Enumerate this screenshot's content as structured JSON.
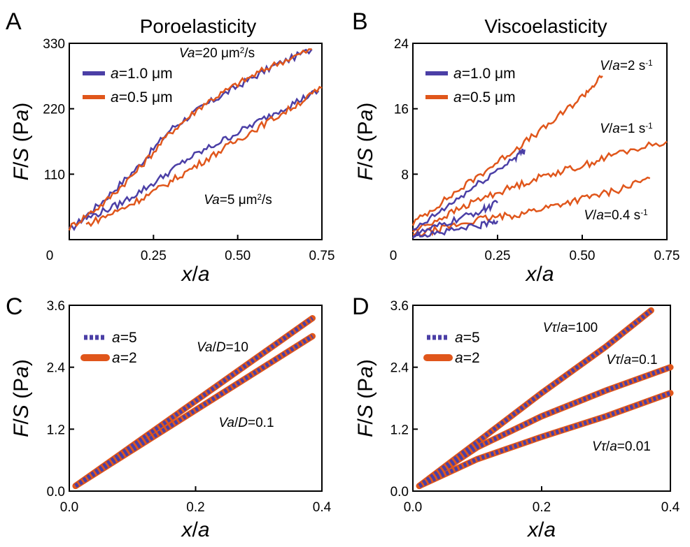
{
  "colors": {
    "blue": "#4b3fa6",
    "orange": "#e0561b",
    "axis": "#000000"
  },
  "chart_data": [
    {
      "panel": "A",
      "title": "Poroelasticity",
      "type": "line",
      "xlabel": "x/a",
      "ylabel": "F/S (Pa)",
      "xlim": [
        0,
        0.75
      ],
      "ylim": [
        0,
        330
      ],
      "xticks": [
        "0",
        "0.25",
        "0.50",
        "0.75"
      ],
      "yticks": [
        "110",
        "220",
        "330"
      ],
      "legend": [
        "a=1.0 μm",
        "a=0.5 μm"
      ],
      "annotations": [
        "Va=20 μm²/s",
        "Va=5 μm²/s"
      ],
      "series": [
        {
          "name": "a=1.0 μm",
          "group": "Va=20 μm²/s",
          "x": [
            0,
            0.1,
            0.2,
            0.3,
            0.4,
            0.5,
            0.6,
            0.72
          ],
          "y": [
            15,
            65,
            120,
            185,
            225,
            258,
            290,
            320
          ]
        },
        {
          "name": "a=0.5 μm",
          "group": "Va=20 μm²/s",
          "x": [
            0,
            0.1,
            0.2,
            0.3,
            0.4,
            0.5,
            0.6,
            0.72
          ],
          "y": [
            20,
            60,
            115,
            180,
            228,
            262,
            292,
            320
          ]
        },
        {
          "name": "a=1.0 μm",
          "group": "Va=5 μm²/s",
          "x": [
            0.05,
            0.15,
            0.25,
            0.35,
            0.45,
            0.55,
            0.65,
            0.74
          ],
          "y": [
            35,
            60,
            95,
            135,
            165,
            195,
            225,
            250
          ]
        },
        {
          "name": "a=0.5 μm",
          "group": "Va=5 μm²/s",
          "x": [
            0.05,
            0.15,
            0.25,
            0.35,
            0.45,
            0.55,
            0.65,
            0.75
          ],
          "y": [
            25,
            50,
            80,
            115,
            150,
            185,
            218,
            255
          ]
        }
      ]
    },
    {
      "panel": "B",
      "title": "Viscoelasticity",
      "type": "line",
      "xlabel": "x/a",
      "ylabel": "F/S (Pa)",
      "xlim": [
        0,
        0.75
      ],
      "ylim": [
        0,
        24
      ],
      "xticks": [
        "0",
        "0.25",
        "0.50",
        "0.75"
      ],
      "yticks": [
        "8",
        "16",
        "24"
      ],
      "legend": [
        "a=1.0 μm",
        "a=0.5 μm"
      ],
      "annotations": [
        "V/a=2 s⁻¹",
        "V/a=1 s⁻¹",
        "V/a=0.4 s⁻¹"
      ],
      "series": [
        {
          "name": "a=0.5 μm",
          "group": "V/a=2 s⁻¹",
          "x": [
            0,
            0.1,
            0.2,
            0.3,
            0.4,
            0.5,
            0.56
          ],
          "y": [
            2,
            5,
            8,
            11,
            14,
            17.5,
            20
          ]
        },
        {
          "name": "a=0.5 μm",
          "group": "V/a=1 s⁻¹",
          "x": [
            0,
            0.1,
            0.2,
            0.3,
            0.4,
            0.5,
            0.6,
            0.75
          ],
          "y": [
            1,
            3,
            5,
            6.5,
            8,
            9,
            10.5,
            12
          ]
        },
        {
          "name": "a=0.5 μm",
          "group": "V/a=0.4 s⁻¹",
          "x": [
            0,
            0.1,
            0.2,
            0.3,
            0.4,
            0.5,
            0.6,
            0.7
          ],
          "y": [
            0.5,
            1.5,
            2.5,
            3,
            4,
            5,
            6,
            7.5
          ]
        },
        {
          "name": "a=1.0 μm",
          "group": "V/a=2 s⁻¹",
          "x": [
            0,
            0.1,
            0.2,
            0.3,
            0.33
          ],
          "y": [
            1,
            4,
            7,
            10,
            11
          ]
        },
        {
          "name": "a=1.0 μm",
          "group": "V/a=1 s⁻¹",
          "x": [
            0,
            0.1,
            0.2,
            0.25
          ],
          "y": [
            0.5,
            2,
            3.5,
            4.5
          ]
        },
        {
          "name": "a=1.0 μm",
          "group": "V/a=0.4 s⁻¹",
          "x": [
            0,
            0.1,
            0.2,
            0.25
          ],
          "y": [
            0.5,
            1,
            1.8,
            2.3
          ]
        }
      ]
    },
    {
      "panel": "C",
      "type": "line",
      "xlabel": "x/a",
      "ylabel": "F/S (Pa)",
      "xlim": [
        0,
        0.4
      ],
      "ylim": [
        0,
        3.6
      ],
      "xticks": [
        "0.0",
        "0.2",
        "0.4"
      ],
      "yticks": [
        "0.0",
        "1.2",
        "2.4",
        "3.6"
      ],
      "legend": [
        "a=5",
        "a=2"
      ],
      "annotations": [
        "Va/D=10",
        "Va/D=0.1"
      ],
      "series": [
        {
          "name": "a=2",
          "group": "Va/D=10",
          "x": [
            0.01,
            0.385
          ],
          "y": [
            0.1,
            3.35
          ]
        },
        {
          "name": "a=2",
          "group": "Va/D=0.1",
          "x": [
            0.01,
            0.385
          ],
          "y": [
            0.1,
            3.0
          ]
        },
        {
          "name": "a=5",
          "group": "Va/D=10",
          "x": [
            0.01,
            0.385
          ],
          "y": [
            0.1,
            3.35
          ]
        },
        {
          "name": "a=5",
          "group": "Va/D=0.1",
          "x": [
            0.01,
            0.385
          ],
          "y": [
            0.1,
            3.0
          ]
        }
      ]
    },
    {
      "panel": "D",
      "type": "line",
      "xlabel": "x/a",
      "ylabel": "F/S (Pa)",
      "xlim": [
        0,
        0.4
      ],
      "ylim": [
        0,
        3.6
      ],
      "xticks": [
        "0.0",
        "0.2",
        "0.4"
      ],
      "yticks": [
        "0.0",
        "1.2",
        "2.4",
        "3.6"
      ],
      "legend": [
        "a=5",
        "a=2"
      ],
      "annotations": [
        "Vτ/a=100",
        "Vτ/a=0.1",
        "Vτ/a=0.01"
      ],
      "series": [
        {
          "name": "a=2",
          "group": "Vτ/a=100",
          "x": [
            0.01,
            0.1,
            0.2,
            0.3,
            0.37
          ],
          "y": [
            0.1,
            0.95,
            1.9,
            2.8,
            3.5
          ]
        },
        {
          "name": "a=2",
          "group": "Vτ/a=0.1",
          "x": [
            0.01,
            0.1,
            0.2,
            0.3,
            0.4
          ],
          "y": [
            0.1,
            0.85,
            1.45,
            1.95,
            2.4
          ]
        },
        {
          "name": "a=2",
          "group": "Vτ/a=0.01",
          "x": [
            0.01,
            0.1,
            0.2,
            0.3,
            0.4
          ],
          "y": [
            0.1,
            0.62,
            1.05,
            1.45,
            1.9
          ]
        },
        {
          "name": "a=5",
          "group": "Vτ/a=100",
          "x": [
            0.01,
            0.1,
            0.2,
            0.3,
            0.37
          ],
          "y": [
            0.1,
            0.95,
            1.9,
            2.8,
            3.5
          ]
        },
        {
          "name": "a=5",
          "group": "Vτ/a=0.1",
          "x": [
            0.01,
            0.1,
            0.2,
            0.3,
            0.4
          ],
          "y": [
            0.1,
            0.85,
            1.45,
            1.95,
            2.4
          ]
        },
        {
          "name": "a=5",
          "group": "Vτ/a=0.01",
          "x": [
            0.01,
            0.1,
            0.2,
            0.3,
            0.4
          ],
          "y": [
            0.1,
            0.62,
            1.05,
            1.45,
            1.9
          ]
        }
      ]
    }
  ]
}
